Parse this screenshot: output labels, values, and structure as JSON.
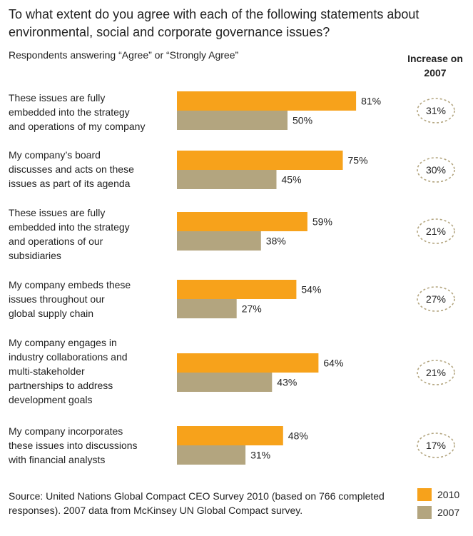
{
  "title": "To what extent do you agree with each of the following statements about environmental, social and corporate governance issues?",
  "subtitle": "Respondents answering “Agree” or “Strongly Agree”",
  "increase_header": "Increase on 2007",
  "source": "Source: United Nations Global Compact CEO Survey 2010 (based on 766 completed responses). 2007 data from McKinsey UN Global Compact survey.",
  "colors": {
    "2010": "#F7A21B",
    "2007": "#B3A57F",
    "circle": "#B3A57F"
  },
  "chart_data": {
    "type": "bar",
    "orientation": "horizontal",
    "categories": [
      [
        "These issues are fully",
        "embedded into the strategy",
        "and operations of my company"
      ],
      [
        "My company’s board",
        "discusses and acts on these",
        "issues as part of its agenda"
      ],
      [
        "These issues are fully",
        "embedded into the strategy",
        "and operations of our",
        "subsidiaries"
      ],
      [
        "My company embeds these",
        "issues throughout our",
        "global supply chain"
      ],
      [
        "My company engages in",
        "industry collaborations and",
        "multi-stakeholder",
        "partnerships to address",
        "development goals"
      ],
      [
        "My company incorporates",
        "these issues into discussions",
        "with financial analysts"
      ]
    ],
    "series": [
      {
        "name": "2010",
        "values": [
          81,
          75,
          59,
          54,
          64,
          48
        ],
        "labels": [
          "81%",
          "75%",
          "59%",
          "54%",
          "64%",
          "48%"
        ]
      },
      {
        "name": "2007",
        "values": [
          50,
          45,
          38,
          27,
          43,
          31
        ],
        "labels": [
          "50%",
          "45%",
          "38%",
          "27%",
          "43%",
          "31%"
        ]
      }
    ],
    "increase": [
      "31%",
      "30%",
      "21%",
      "27%",
      "21%",
      "17%"
    ],
    "unit": "%",
    "xlim": [
      0,
      100
    ],
    "legend": "bottom-right",
    "grid": false
  }
}
